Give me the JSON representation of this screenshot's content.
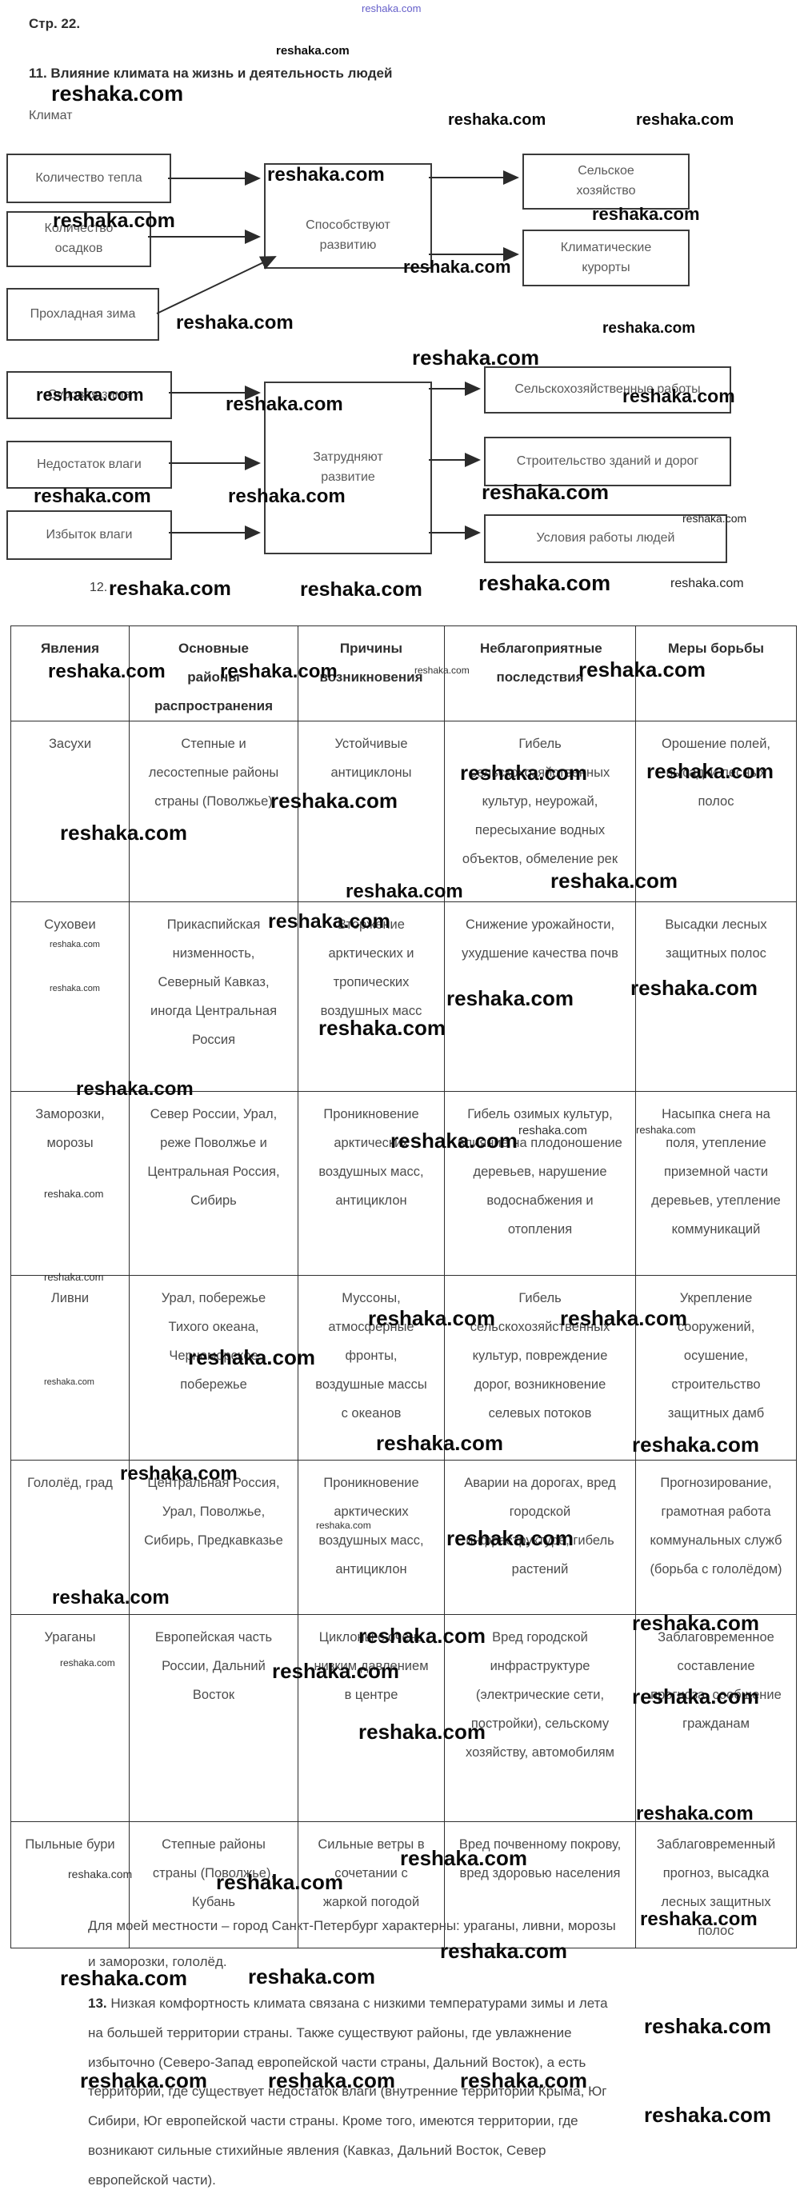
{
  "watermark": {
    "text": "reshaka.com"
  },
  "page": {
    "page_label": "Стр. 22.",
    "task11_title": "11. Влияние климата на жизнь и деятельность людей",
    "climate_label": "Климат",
    "task12_label": "12."
  },
  "flowchart1": {
    "inputs": [
      "Количество тепла",
      "Количество осадков",
      "Прохладная зима"
    ],
    "center": "Способствуют развитию",
    "outputs": [
      "Сельское хозяйство",
      "Климатические курорты"
    ]
  },
  "flowchart2": {
    "inputs": [
      "Суровая зима",
      "Недостаток влаги",
      "Избыток влаги"
    ],
    "center": "Затрудняют развитие",
    "outputs": [
      "Сельскохозяйственные работы",
      "Строительство зданий и дорог",
      "Условия работы людей"
    ]
  },
  "table": {
    "headers": [
      "Явления",
      "Основные районы распространения",
      "Причины возникновения",
      "Неблагоприятные последствия",
      "Меры борьбы"
    ],
    "rows": [
      {
        "phenomenon": "Засухи",
        "regions": "Степные и лесостепные районы страны (Поволжье)",
        "causes": "Устойчивые антициклоны",
        "consequences": "Гибель сельскохозяйственных культур, неурожай, пересыхание водных объектов, обмеление рек",
        "measures": "Орошение полей, высадки лесных полос"
      },
      {
        "phenomenon": "Суховеи",
        "regions": "Прикаспийская низменность, Северный Кавказ, иногда Центральная Россия",
        "causes": "Вторжение арктических и тропических воздушных масс",
        "consequences": "Снижение урожайности, ухудшение качества почв",
        "measures": "Высадки лесных защитных полос"
      },
      {
        "phenomenon": "Заморозки, морозы",
        "regions": "Север России, Урал, реже Поволжье и Центральная Россия, Сибирь",
        "causes": "Проникновение арктических воздушных масс, антициклон",
        "consequences": "Гибель озимых культур, влияние на плодоношение деревьев, нарушение водоснабжения и отопления",
        "measures": "Насыпка снега на поля, утепление приземной части деревьев, утепление коммуникаций"
      },
      {
        "phenomenon": "Ливни",
        "regions": "Урал, побережье Тихого океана, Черноморское побережье",
        "causes": "Муссоны, атмосферные фронты, воздушные массы с океанов",
        "consequences": "Гибель сельскохозяйственных культур, повреждение дорог, возникновение селевых потоков",
        "measures": "Укрепление сооружений, осушение, строительство защитных дамб"
      },
      {
        "phenomenon": "Гололёд, град",
        "regions": "Центральная Россия, Урал, Поволжье, Сибирь, Предкавказье",
        "causes": "Проникновение арктических воздушных масс, антициклон",
        "consequences": "Аварии на дорогах, вред городской инфраструктуре, гибель растений",
        "measures": "Прогнозирование, грамотная работа коммунальных служб (борьба с гололёдом)"
      },
      {
        "phenomenon": "Ураганы",
        "regions": "Европейская часть России, Дальний Восток",
        "causes": "Циклоны с очень низким давлением в центре",
        "consequences": "Вред городской инфраструктуре (электрические сети, постройки), сельскому хозяйству, автомобилям",
        "measures": "Заблаговременное составление прогноза, сообщение гражданам"
      },
      {
        "phenomenon": "Пыльные бури",
        "regions": "Степные районы страны (Поволжье), Кубань",
        "causes": "Сильные  ветры в сочетании с жаркой погодой",
        "consequences": "Вред почвенному покрову, вред здоровью населения",
        "measures": "Заблаговременный прогноз, высадка лесных защитных полос"
      }
    ]
  },
  "notes": {
    "locality_lines": [
      "Для моей местности – город Санкт-Петербург характерны: ураганы, ливни, морозы",
      "и заморозки, гололёд."
    ],
    "task13_prefix": "13.",
    "task13_lines": [
      "Низкая комфортность климата связана с низкими температурами зимы и лета",
      "на большей территории страны. Также существуют районы, где увлажнение",
      "избыточно (Северо-Запад европейской части страны, Дальний Восток), а есть",
      "территории, где существует недостаток влаги (внутренние территории Крыма, Юг",
      "Сибири, Юг европейской части страны. Кроме того, имеются территории, где",
      "возникают сильные стихийные явления (Кавказ, Дальний Восток, Север",
      "европейской части)."
    ]
  },
  "colors": {
    "watermark_blue": "#4a43c0",
    "ink": "#3a3a3a"
  }
}
